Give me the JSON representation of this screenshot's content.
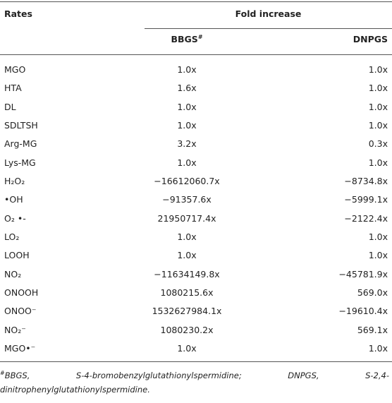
{
  "table": {
    "header": {
      "rates": "Rates",
      "group": "Fold increase",
      "columns": [
        {
          "text": "BBGS",
          "sup": "#"
        },
        {
          "text": "DNPGS"
        }
      ]
    },
    "rows": [
      [
        "MGO",
        "1.0x",
        "1.0x"
      ],
      [
        "HTA",
        "1.6x",
        "1.0x"
      ],
      [
        "DL",
        "1.0x",
        "1.0x"
      ],
      [
        "SDLTSH",
        "1.0x",
        "1.0x"
      ],
      [
        "Arg-MG",
        "3.2x",
        "0.3x"
      ],
      [
        "Lys-MG",
        "1.0x",
        "1.0x"
      ],
      [
        "H₂O₂",
        "−16612060.7x",
        "−8734.8x"
      ],
      [
        "•OH",
        "−91357.6x",
        "−5999.1x"
      ],
      [
        "O₂ •-",
        "21950717.4x",
        "−2122.4x"
      ],
      [
        "LO₂",
        "1.0x",
        "1.0x"
      ],
      [
        "LOOH",
        "1.0x",
        "1.0x"
      ],
      [
        "NO₂",
        "−11634149.8x",
        "−45781.9x"
      ],
      [
        "ONOOH",
        "1080215.6x",
        "569.0x"
      ],
      [
        "ONOO⁻",
        "1532627984.1x",
        "−19610.4x"
      ],
      [
        "NO₂⁻",
        "1080230.2x",
        "569.1x"
      ],
      [
        "MGO•⁻",
        "1.0x",
        "1.0x"
      ]
    ]
  },
  "footnote": {
    "mark": "#",
    "text": "BBGS, S-4-bromobenzylglutathionylspermidine; DNPGS, S-2,4-dinitrophenylglutathionylspermidine."
  }
}
